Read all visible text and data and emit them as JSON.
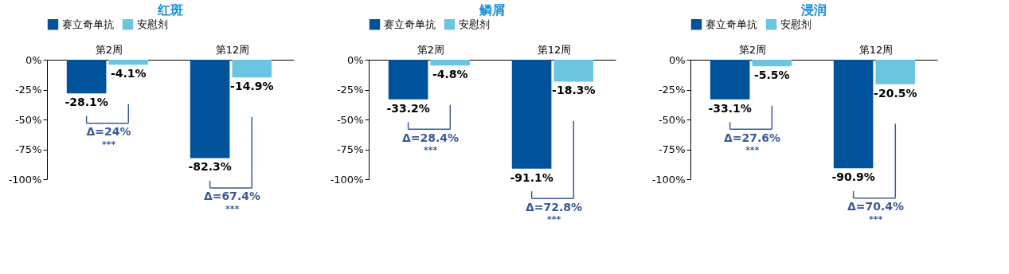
{
  "chart_data": [
    {
      "type": "bar",
      "title": "红斑",
      "categories": [
        "第2周",
        "第12周"
      ],
      "series": [
        {
          "name": "赛立奇单抗",
          "color": "#00529b",
          "values": [
            -28.1,
            -82.3
          ],
          "value_labels": [
            "-28.1%",
            "-82.3%"
          ]
        },
        {
          "name": "安慰剂",
          "color": "#6cc5e0",
          "values": [
            -4.1,
            -14.9
          ],
          "value_labels": [
            "-4.1%",
            "-14.9%"
          ]
        }
      ],
      "ylim": [
        -100,
        0
      ],
      "yticks": [
        {
          "value": 0,
          "label": "0%"
        },
        {
          "value": -25,
          "label": "-25%"
        },
        {
          "value": -50,
          "label": "-50%"
        },
        {
          "value": -75,
          "label": "-75%"
        },
        {
          "value": -100,
          "label": "-100%"
        }
      ],
      "annotations": [
        "Δ=24%",
        "***",
        "Δ=67.4%",
        "***"
      ],
      "legend": "top",
      "grid": false
    },
    {
      "type": "bar",
      "title": "鳞屑",
      "categories": [
        "第2周",
        "第12周"
      ],
      "series": [
        {
          "name": "赛立奇单抗",
          "color": "#00529b",
          "values": [
            -33.2,
            -91.1
          ],
          "value_labels": [
            "-33.2%",
            "-91.1%"
          ]
        },
        {
          "name": "安慰剂",
          "color": "#6cc5e0",
          "values": [
            -4.8,
            -18.3
          ],
          "value_labels": [
            "-4.8%",
            "-18.3%"
          ]
        }
      ],
      "ylim": [
        -100,
        0
      ],
      "yticks": [
        {
          "value": 0,
          "label": "0%"
        },
        {
          "value": -25,
          "label": "-25%"
        },
        {
          "value": -50,
          "label": "-50%"
        },
        {
          "value": -75,
          "label": "-75%"
        },
        {
          "value": -100,
          "label": "-100%"
        }
      ],
      "annotations": [
        "Δ=28.4%",
        "***",
        "Δ=72.8%",
        "***"
      ],
      "legend": "top",
      "grid": false
    },
    {
      "type": "bar",
      "title": "浸润",
      "categories": [
        "第2周",
        "第12周"
      ],
      "series": [
        {
          "name": "赛立奇单抗",
          "color": "#00529b",
          "values": [
            -33.1,
            -90.9
          ],
          "value_labels": [
            "-33.1%",
            "-90.9%"
          ]
        },
        {
          "name": "安慰剂",
          "color": "#6cc5e0",
          "values": [
            -5.5,
            -20.5
          ],
          "value_labels": [
            "-5.5%",
            "-20.5%"
          ]
        }
      ],
      "ylim": [
        -100,
        0
      ],
      "yticks": [
        {
          "value": 0,
          "label": "0%"
        },
        {
          "value": -25,
          "label": "-25%"
        },
        {
          "value": -50,
          "label": "-50%"
        },
        {
          "value": -75,
          "label": "-75%"
        },
        {
          "value": -100,
          "label": "-100%"
        }
      ],
      "annotations": [
        "Δ=27.6%",
        "***",
        "Δ=70.4%",
        "***"
      ],
      "legend": "top",
      "grid": false
    }
  ]
}
